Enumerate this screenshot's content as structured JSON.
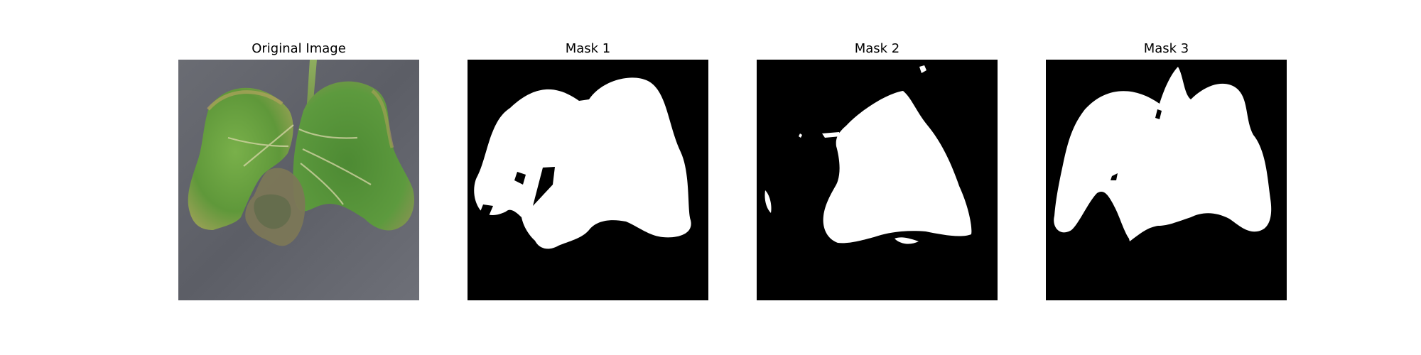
{
  "figure": {
    "panels": [
      {
        "title": "Original Image"
      },
      {
        "title": "Mask 1"
      },
      {
        "title": "Mask 2"
      },
      {
        "title": "Mask 3"
      }
    ]
  },
  "colors": {
    "background": "#ffffff",
    "mask_background": "#000000",
    "mask_foreground": "#ffffff",
    "photo_surface": "#5d5f66",
    "leaf_green": "#5f9a3c",
    "leaf_dark_green": "#3f7a2c",
    "leaf_damage": "#8a8660"
  }
}
